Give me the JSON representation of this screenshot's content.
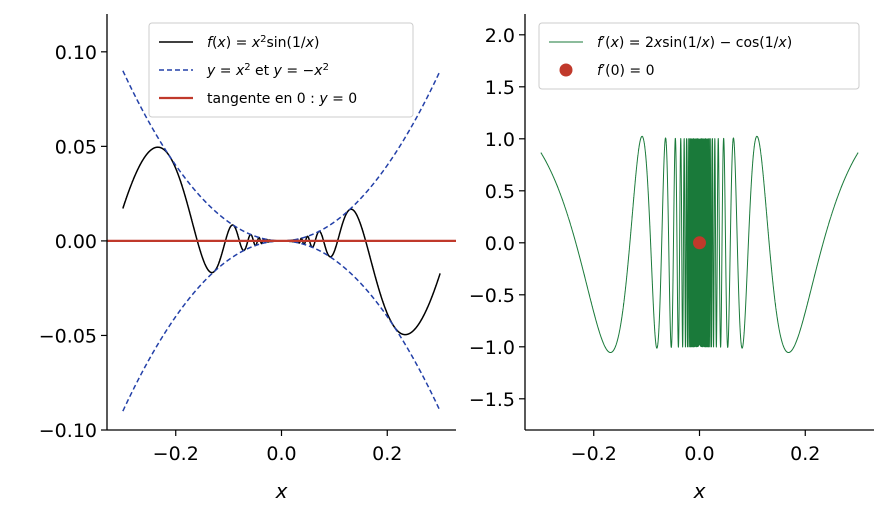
{
  "chart_data": [
    {
      "type": "line",
      "panel": "left",
      "xlabel": "x",
      "ylabel": "",
      "xlim": [
        -0.33,
        0.33
      ],
      "ylim": [
        -0.1,
        0.12
      ],
      "x_ticks": [
        -0.2,
        0.0,
        0.2
      ],
      "x_tick_labels": [
        "−0.2",
        "0.0",
        "0.2"
      ],
      "y_ticks": [
        -0.1,
        -0.05,
        0.0,
        0.05,
        0.1
      ],
      "y_tick_labels": [
        "−0.10",
        "−0.05",
        "0.00",
        "0.05",
        "0.10"
      ],
      "x_domain": [
        -0.3,
        0.3
      ],
      "legend_position": "top-right",
      "grid": false,
      "series": [
        {
          "name": "f(x) = x²sin(1/x)",
          "legend_parts": [
            [
              "f",
              "i"
            ],
            [
              "(",
              ""
            ],
            [
              "x",
              "i"
            ],
            [
              ")",
              ""
            ],
            [
              " = ",
              ""
            ],
            [
              "x",
              "i"
            ],
            [
              "2",
              "sup"
            ],
            [
              "sin(1/",
              ""
            ],
            [
              "x",
              "i"
            ],
            [
              ")",
              ""
            ]
          ],
          "function": "x^2*sin(1/x)",
          "color": "#000000",
          "style": "solid"
        },
        {
          "name": "y = x² et y = −x²",
          "legend_parts": [
            [
              "y",
              "i"
            ],
            [
              " = ",
              ""
            ],
            [
              "x",
              "i"
            ],
            [
              "2",
              "sup"
            ],
            [
              " et ",
              ""
            ],
            [
              "y",
              "i"
            ],
            [
              " = −",
              ""
            ],
            [
              "x",
              "i"
            ],
            [
              "2",
              "sup"
            ]
          ],
          "function": "±x^2",
          "color": "#2340a8",
          "style": "dashed"
        },
        {
          "name": "tangente en 0 : y = 0",
          "legend_parts": [
            [
              "tangente en 0 : ",
              ""
            ],
            [
              "y",
              "i"
            ],
            [
              " = 0",
              ""
            ]
          ],
          "function": "0",
          "color": "#c0392b",
          "style": "solid"
        }
      ]
    },
    {
      "type": "line",
      "panel": "right",
      "xlabel": "x",
      "ylabel": "",
      "xlim": [
        -0.33,
        0.33
      ],
      "ylim": [
        -1.8,
        2.2
      ],
      "x_ticks": [
        -0.2,
        0.0,
        0.2
      ],
      "x_tick_labels": [
        "−0.2",
        "0.0",
        "0.2"
      ],
      "y_ticks": [
        -1.5,
        -1.0,
        -0.5,
        0.0,
        0.5,
        1.0,
        1.5,
        2.0
      ],
      "y_tick_labels": [
        "−1.5",
        "−1.0",
        "−0.5",
        "0.0",
        "0.5",
        "1.0",
        "1.5",
        "2.0"
      ],
      "x_domain": [
        -0.3,
        0.3
      ],
      "legend_position": "top-right",
      "grid": false,
      "series": [
        {
          "name": "f′(x) = 2xsin(1/x) − cos(1/x)",
          "legend_parts": [
            [
              "f",
              "i"
            ],
            [
              "′",
              ""
            ],
            [
              "(",
              ""
            ],
            [
              "x",
              "i"
            ],
            [
              ")",
              ""
            ],
            [
              " = 2",
              ""
            ],
            [
              "x",
              "i"
            ],
            [
              "sin(1/",
              ""
            ],
            [
              "x",
              "i"
            ],
            [
              ") − cos(1/",
              ""
            ],
            [
              "x",
              "i"
            ],
            [
              ")",
              ""
            ]
          ],
          "function": "2x*sin(1/x) - cos(1/x)",
          "color": "#1a7a3a",
          "style": "solid"
        },
        {
          "name": "f′(0) = 0",
          "legend_parts": [
            [
              "f",
              "i"
            ],
            [
              "′",
              ""
            ],
            [
              "(0) = 0",
              ""
            ]
          ],
          "type": "point",
          "points": [
            {
              "x": 0.0,
              "y": 0.0
            }
          ],
          "color": "#c0392b"
        }
      ]
    }
  ]
}
